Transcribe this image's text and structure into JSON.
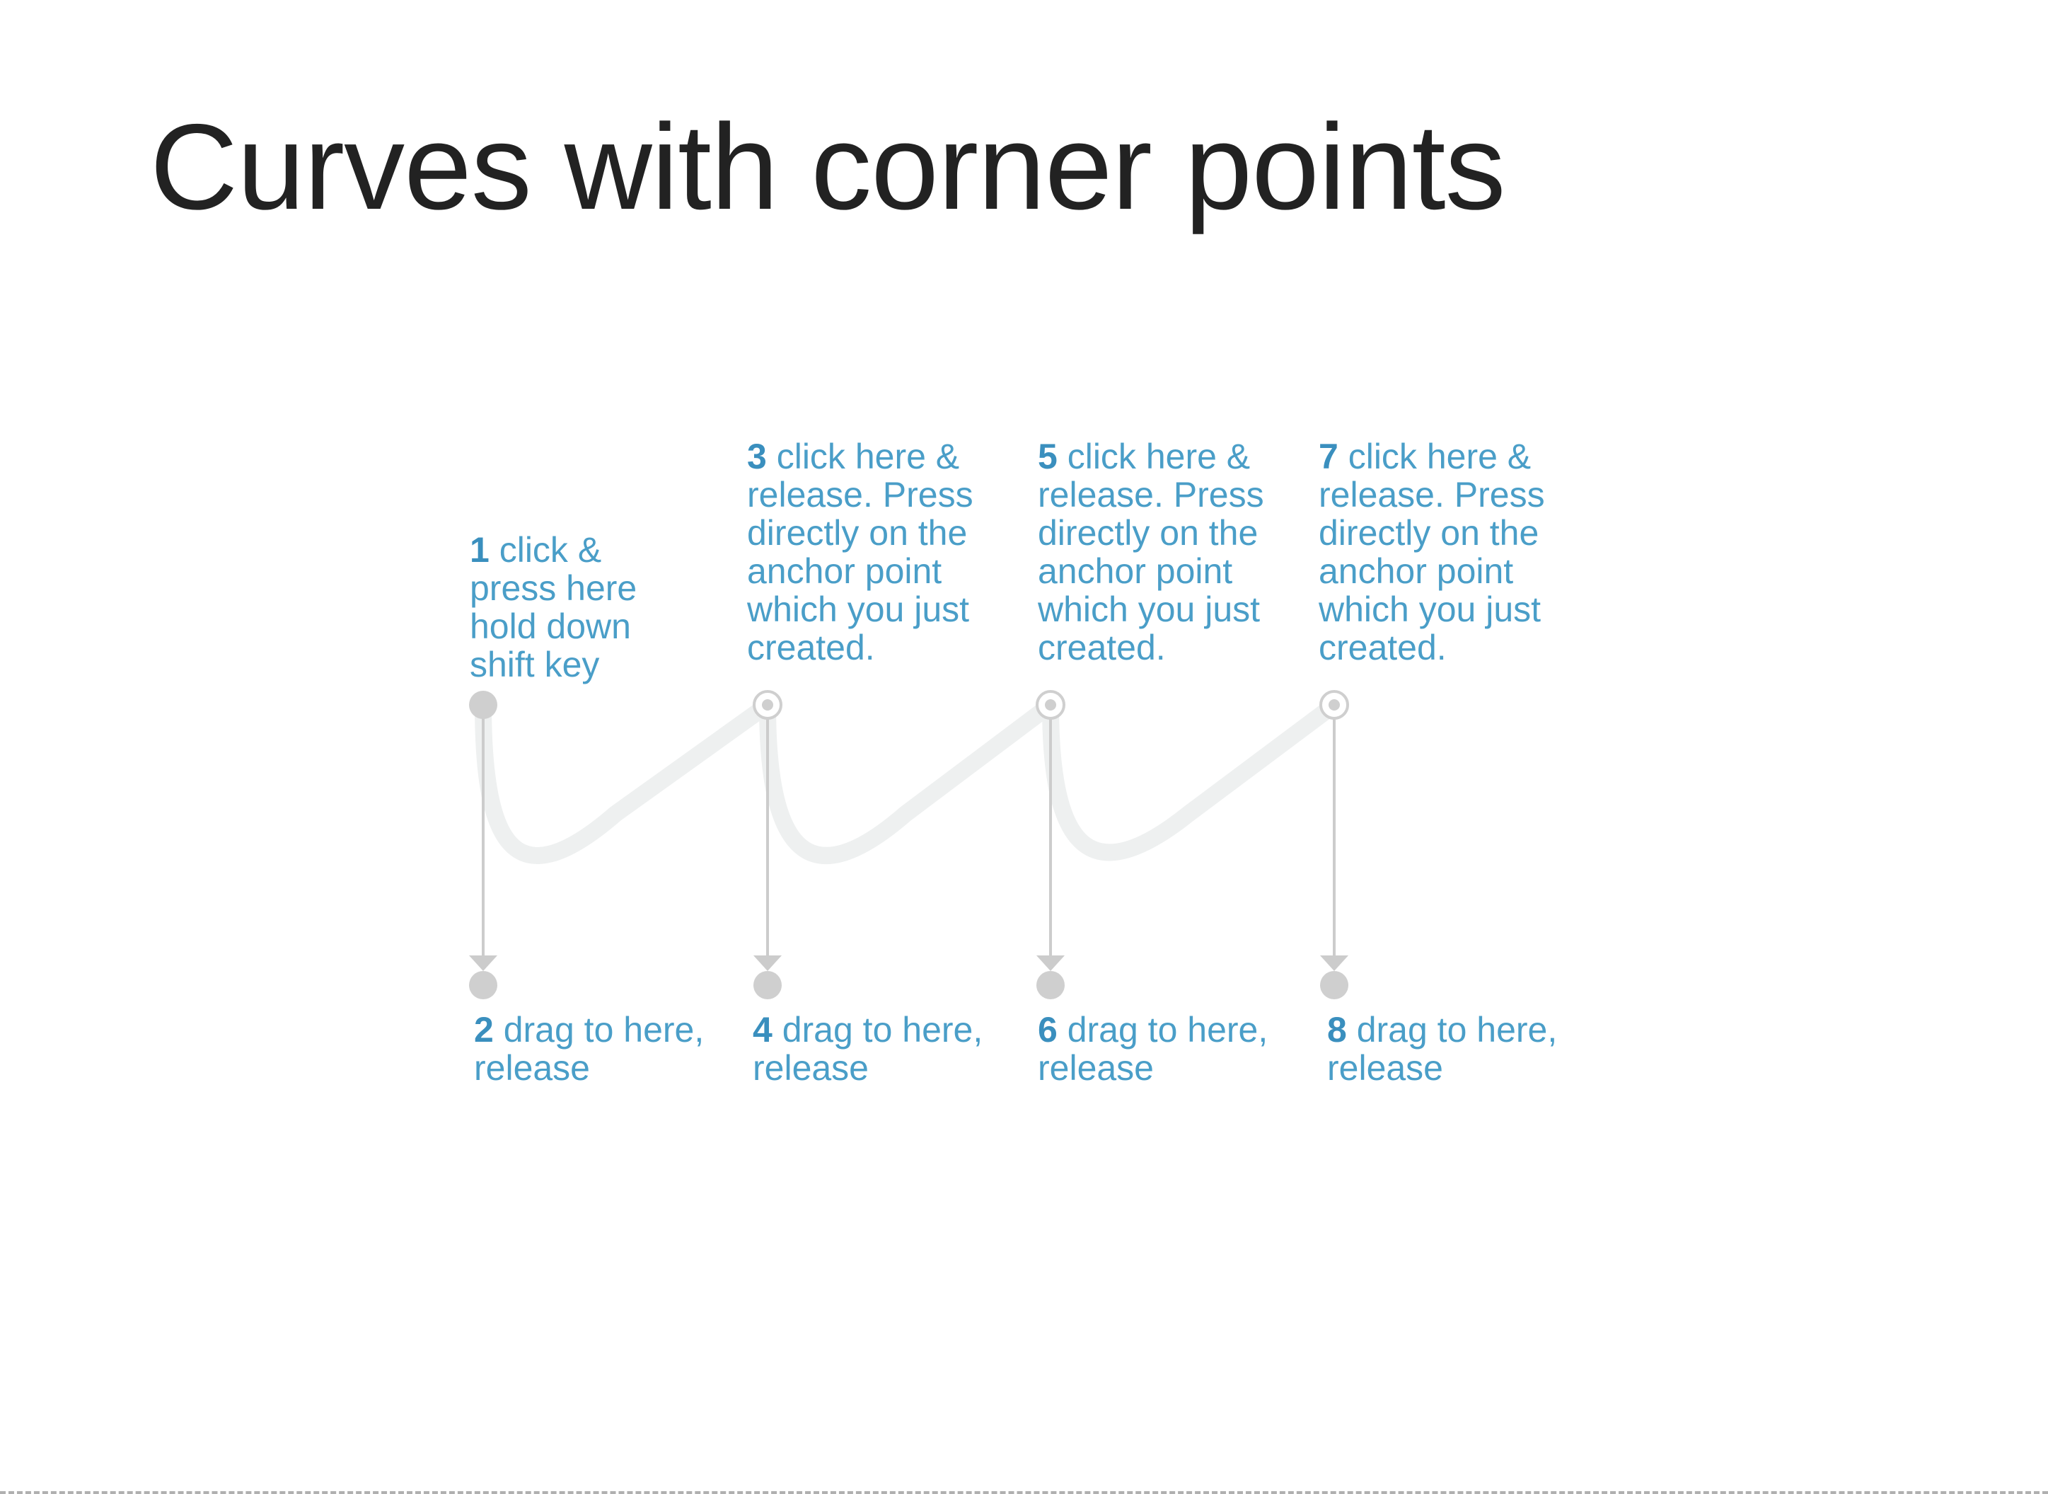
{
  "title": "Curves with corner points",
  "colors": {
    "text": "#222222",
    "accent": "#4a9ec8",
    "guide": "#cccccc",
    "curve": "#eef0f0",
    "point": "#cfcfcf"
  },
  "steps": [
    {
      "num": "1",
      "lines": [
        "click &",
        "press here",
        "hold down",
        "shift key"
      ]
    },
    {
      "num": "2",
      "lines": [
        "drag to here,",
        "release"
      ]
    },
    {
      "num": "3",
      "lines": [
        "click here &",
        "release. Press",
        "directly on the",
        "anchor point",
        "which you just",
        "created."
      ]
    },
    {
      "num": "4",
      "lines": [
        "drag to here,",
        "release"
      ]
    },
    {
      "num": "5",
      "lines": [
        "click here &",
        "release. Press",
        "directly on the",
        "anchor point",
        "which you just",
        "created."
      ]
    },
    {
      "num": "6",
      "lines": [
        "drag to here,",
        "release"
      ]
    },
    {
      "num": "7",
      "lines": [
        "click here &",
        "release. Press",
        "directly on the",
        "anchor point",
        "which you just",
        "created."
      ]
    },
    {
      "num": "8",
      "lines": [
        "drag to here,",
        "release"
      ]
    }
  ]
}
